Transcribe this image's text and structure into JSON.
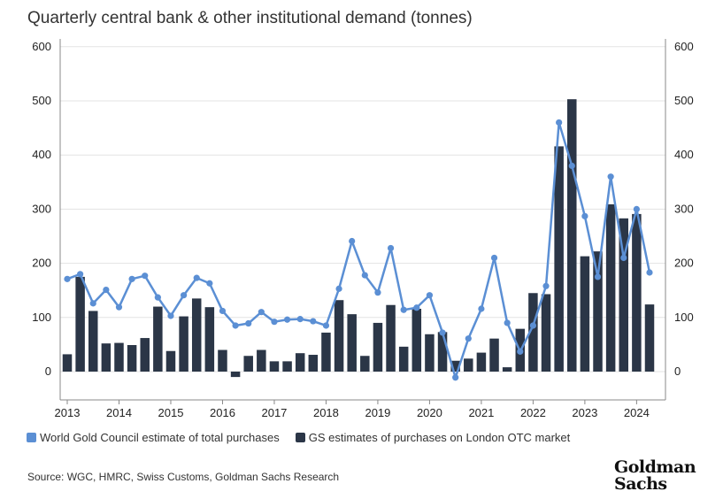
{
  "title": "Quarterly central bank & other institutional demand (tonnes)",
  "legend": {
    "line_label": "World Gold Council estimate of total purchases",
    "bar_label": "GS estimates of purchases on London OTC market"
  },
  "source": "Source: WGC, HMRC, Swiss Customs, Goldman Sachs Research",
  "logo": {
    "line1": "Goldman",
    "line2": "Sachs"
  },
  "colors": {
    "bar": "#2b3647",
    "line": "#5b8fd4",
    "grid": "#e3e3e3",
    "axis": "#888888"
  },
  "chart_data": {
    "type": "bar+line",
    "years": [
      "2013",
      "2014",
      "2015",
      "2016",
      "2017",
      "2018",
      "2019",
      "2020",
      "2021",
      "2022",
      "2023",
      "2024"
    ],
    "ylim": [
      -50,
      600
    ],
    "yticks": [
      0,
      100,
      200,
      300,
      400,
      500,
      600
    ],
    "grid": true,
    "legend_position": "bottom",
    "series": [
      {
        "name": "GS estimates of purchases on London OTC market",
        "type": "bar",
        "values": [
          32,
          175,
          112,
          52,
          53,
          49,
          62,
          120,
          38,
          102,
          135,
          119,
          40,
          -10,
          29,
          40,
          19,
          19,
          34,
          31,
          72,
          132,
          106,
          29,
          90,
          123,
          46,
          116,
          69,
          73,
          20,
          24,
          35,
          61,
          8,
          79,
          145,
          143,
          416,
          503,
          213,
          222,
          309,
          283,
          291,
          124
        ]
      },
      {
        "name": "World Gold Council estimate of total purchases",
        "type": "line",
        "values": [
          171,
          180,
          126,
          151,
          119,
          171,
          177,
          137,
          103,
          141,
          173,
          163,
          112,
          85,
          89,
          110,
          92,
          96,
          97,
          93,
          85,
          153,
          241,
          178,
          146,
          228,
          114,
          118,
          141,
          72,
          -11,
          61,
          116,
          210,
          90,
          37,
          85,
          158,
          460,
          380,
          287,
          175,
          360,
          210,
          300,
          183
        ]
      }
    ]
  }
}
